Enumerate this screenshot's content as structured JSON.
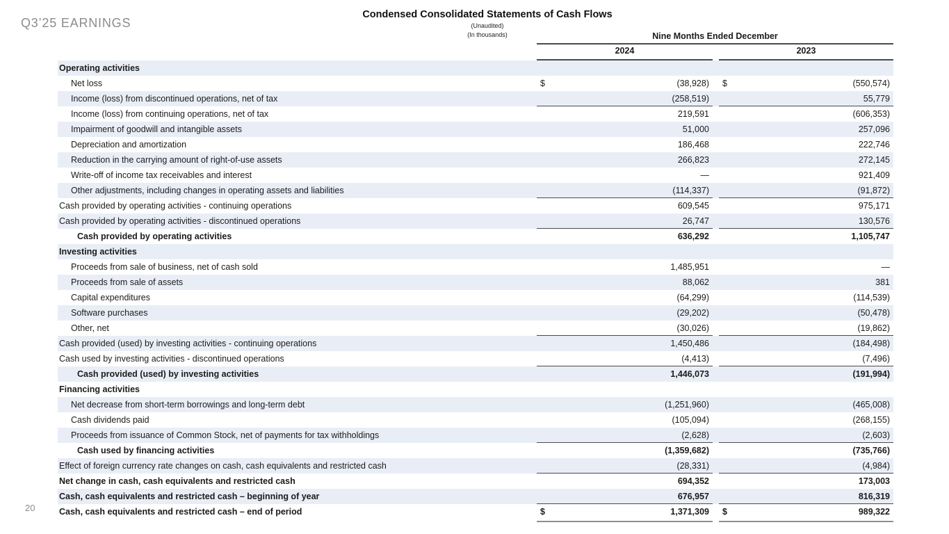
{
  "slide": {
    "eyebrow": "Q3’25 EARNINGS",
    "title": "Condensed Consolidated Statements of Cash Flows",
    "subtitle1": "(Unaudited)",
    "subtitle2": "(In thousands)",
    "page_number": "20"
  },
  "colors": {
    "stripe": "#e9eef6",
    "rule": "#4a4a4a",
    "final_rule": "#8f8f8f",
    "eyebrow_text": "#8c8c8c"
  },
  "table": {
    "period_header": "Nine Months Ended December",
    "columns": [
      "2024",
      "2023"
    ],
    "currency_symbol": "$",
    "rows": [
      {
        "label": "Operating activities",
        "indent": 0,
        "bold": true,
        "values": [
          "",
          ""
        ]
      },
      {
        "label": "Net loss",
        "indent": 1,
        "dollar": true,
        "values": [
          "(38,928)",
          "(550,574)"
        ]
      },
      {
        "label": "Income (loss) from discontinued operations, net of tax",
        "indent": 1,
        "underline": true,
        "values": [
          "(258,519)",
          "55,779"
        ]
      },
      {
        "label": "Income (loss) from continuing operations, net of tax",
        "indent": 1,
        "values": [
          "219,591",
          "(606,353)"
        ]
      },
      {
        "label": "Impairment of goodwill and intangible assets",
        "indent": 1,
        "values": [
          "51,000",
          "257,096"
        ]
      },
      {
        "label": "Depreciation and amortization",
        "indent": 1,
        "values": [
          "186,468",
          "222,746"
        ]
      },
      {
        "label": "Reduction in the carrying amount of right-of-use assets",
        "indent": 1,
        "values": [
          "266,823",
          "272,145"
        ]
      },
      {
        "label": "Write-off of income tax receivables and interest",
        "indent": 1,
        "values": [
          "—",
          "921,409"
        ]
      },
      {
        "label": "Other adjustments, including changes in operating assets and liabilities",
        "indent": 1,
        "underline": true,
        "values": [
          "(114,337)",
          "(91,872)"
        ]
      },
      {
        "label": "Cash provided by operating activities - continuing operations",
        "indent": 0,
        "values": [
          "609,545",
          "975,171"
        ]
      },
      {
        "label": "Cash provided by operating activities - discontinued operations",
        "indent": 0,
        "underline": true,
        "values": [
          "26,747",
          "130,576"
        ]
      },
      {
        "label": "Cash provided by operating activities",
        "indent": 2,
        "bold": true,
        "values": [
          "636,292",
          "1,105,747"
        ]
      },
      {
        "label": "Investing activities",
        "indent": 0,
        "bold": true,
        "values": [
          "",
          ""
        ]
      },
      {
        "label": "Proceeds from sale of business, net of cash sold",
        "indent": 1,
        "values": [
          "1,485,951",
          "—"
        ]
      },
      {
        "label": "Proceeds from sale of assets",
        "indent": 1,
        "values": [
          "88,062",
          "381"
        ]
      },
      {
        "label": "Capital expenditures",
        "indent": 1,
        "values": [
          "(64,299)",
          "(114,539)"
        ]
      },
      {
        "label": "Software purchases",
        "indent": 1,
        "values": [
          "(29,202)",
          "(50,478)"
        ]
      },
      {
        "label": "Other, net",
        "indent": 1,
        "underline": true,
        "values": [
          "(30,026)",
          "(19,862)"
        ]
      },
      {
        "label": "Cash provided (used) by investing activities - continuing operations",
        "indent": 0,
        "values": [
          "1,450,486",
          "(184,498)"
        ]
      },
      {
        "label": "Cash used by investing activities - discontinued operations",
        "indent": 0,
        "underline": true,
        "values": [
          "(4,413)",
          "(7,496)"
        ]
      },
      {
        "label": "Cash provided (used) by investing activities",
        "indent": 2,
        "bold": true,
        "values": [
          "1,446,073",
          "(191,994)"
        ]
      },
      {
        "label": "Financing activities",
        "indent": 0,
        "bold": true,
        "values": [
          "",
          ""
        ]
      },
      {
        "label": "Net decrease from short-term borrowings and long-term debt",
        "indent": 1,
        "values": [
          "(1,251,960)",
          "(465,008)"
        ]
      },
      {
        "label": "Cash dividends paid",
        "indent": 1,
        "values": [
          "(105,094)",
          "(268,155)"
        ]
      },
      {
        "label": "Proceeds from issuance of Common Stock, net of payments for tax withholdings",
        "indent": 1,
        "underline": true,
        "values": [
          "(2,628)",
          "(2,603)"
        ]
      },
      {
        "label": "Cash used by financing activities",
        "indent": 2,
        "bold": true,
        "values": [
          "(1,359,682)",
          "(735,766)"
        ]
      },
      {
        "label": "Effect of foreign currency rate changes on cash, cash equivalents and restricted cash",
        "indent": 0,
        "underline": true,
        "values": [
          "(28,331)",
          "(4,984)"
        ]
      },
      {
        "label": "Net change in cash, cash equivalents and restricted cash",
        "indent": 0,
        "bold": true,
        "values": [
          "694,352",
          "173,003"
        ]
      },
      {
        "label": "Cash, cash equivalents and restricted cash – beginning of year",
        "indent": 0,
        "bold": true,
        "underline": true,
        "values": [
          "676,957",
          "816,319"
        ]
      },
      {
        "label": "Cash, cash equivalents and restricted cash – end of period",
        "indent": 0,
        "bold": true,
        "dollar": true,
        "final": true,
        "values": [
          "1,371,309",
          "989,322"
        ]
      }
    ]
  }
}
